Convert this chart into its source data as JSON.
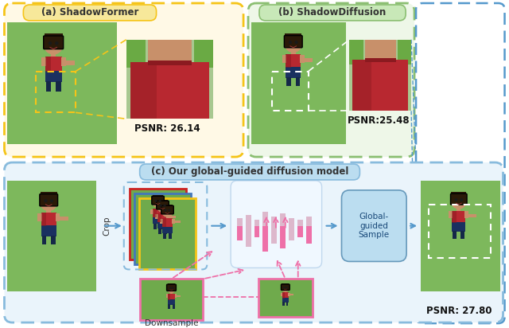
{
  "fig_width": 6.4,
  "fig_height": 4.12,
  "bg_color": "#ffffff",
  "panel_a": {
    "label": "(a) ShadowFormer",
    "psnr": "PSNR: 26.14",
    "outer_fill": "#FFF9E6",
    "outer_edge": "#F5C418",
    "label_fill": "#F7E89A",
    "label_edge": "#C8A800"
  },
  "panel_b": {
    "label": "(b) ShadowDiffusion",
    "psnr": "PSNR:25.48",
    "outer_fill": "#EEF7E8",
    "outer_edge": "#8BBF72",
    "label_fill": "#C8E8B8",
    "label_edge": "#7AAF60"
  },
  "panel_c": {
    "label": "(c) Our global-guided diffusion model",
    "psnr": "PSNR: 27.80",
    "outer_fill": "#EAF4FB",
    "outer_edge": "#88BBDD",
    "label_fill": "#BBDDF0",
    "label_edge": "#6699BB",
    "global_fill": "#BBDDF0",
    "global_edge": "#6699BB"
  },
  "colors": {
    "green_bg": "#7DB85C",
    "green_bg2": "#6FAA4C",
    "skin": "#C8906A",
    "hair": "#2A1A08",
    "shirt_red": "#B82830",
    "shirt_shadow": "#8A1A20",
    "pants": "#1A3060",
    "arm": "#C8906A",
    "yellow_highlight": "#F5C418",
    "white_highlight": "#FFFFFF",
    "arrow_blue": "#5599CC",
    "arrow_pink": "#EE70A8",
    "pink_bar": "#EE70A8",
    "pink_bar_light": "#DDB8CC",
    "crop_red_border": "#CC2222",
    "crop_blue_border": "#4477BB",
    "crop_yellow_border": "#F5C418",
    "crop_pink_border": "#EE70A8"
  }
}
